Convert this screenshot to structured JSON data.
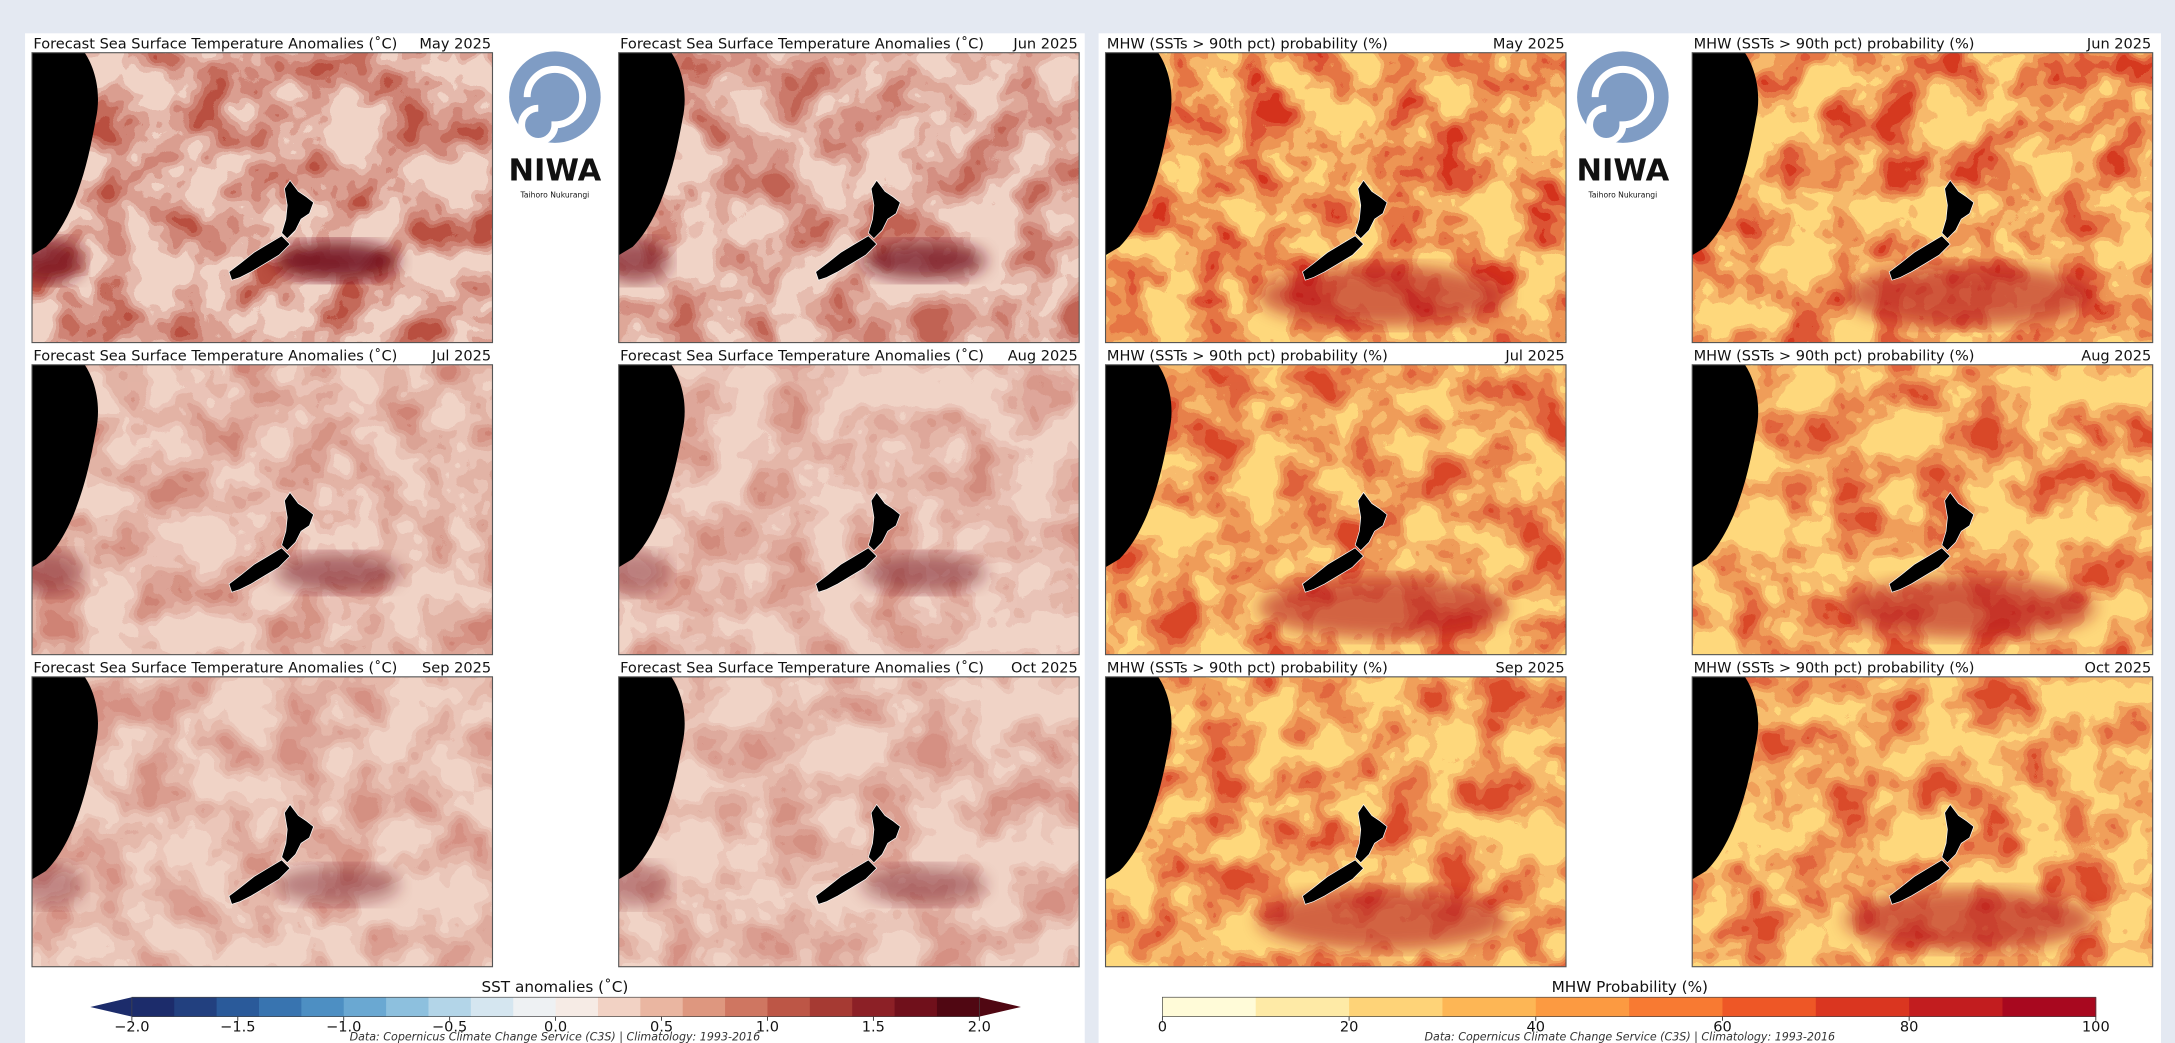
{
  "logo": {
    "name": "NIWA",
    "tagline": "Taihoro Nukurangi"
  },
  "sst_panel": {
    "maps": [
      {
        "title": "Forecast Sea Surface Temperature Anomalies (˚C)",
        "month": "May 2025"
      },
      {
        "title": "Forecast Sea Surface Temperature Anomalies (˚C)",
        "month": "Jun 2025"
      },
      {
        "title": "Forecast Sea Surface Temperature Anomalies (˚C)",
        "month": "Jul 2025"
      },
      {
        "title": "Forecast Sea Surface Temperature Anomalies (˚C)",
        "month": "Aug 2025"
      },
      {
        "title": "Forecast Sea Surface Temperature Anomalies (˚C)",
        "month": "Sep 2025"
      },
      {
        "title": "Forecast Sea Surface Temperature Anomalies (˚C)",
        "month": "Oct 2025"
      }
    ],
    "colorbar": {
      "label": "SST anomalies (˚C)",
      "lim": [
        -2,
        2
      ],
      "ticks": [
        {
          "value": -2,
          "label": "−2.0"
        },
        {
          "value": -1.5,
          "label": "−1.5"
        },
        {
          "value": -1,
          "label": "−1.0"
        },
        {
          "value": -0.5,
          "label": "−0.5"
        },
        {
          "value": 0,
          "label": "0.0"
        },
        {
          "value": 0.5,
          "label": "0.5"
        },
        {
          "value": 1,
          "label": "1.0"
        },
        {
          "value": 1.5,
          "label": "1.5"
        },
        {
          "value": 2,
          "label": "2.0"
        }
      ],
      "colors": [
        "#1c2c6b",
        "#22407f",
        "#2a5a9a",
        "#3874b0",
        "#4d8fc3",
        "#6aa8d2",
        "#8dc0de",
        "#b3d5e8",
        "#d5e6f0",
        "#eef1f3",
        "#f6ebe5",
        "#f2d2c4",
        "#eab6a1",
        "#de977f",
        "#cf7661",
        "#bd5646",
        "#a63a33",
        "#8c2026",
        "#70101b",
        "#500712"
      ]
    },
    "source": "Data: Copernicus Climate Change Service (C3S) | Climatology: 1993-2016"
  },
  "mhw_panel": {
    "maps": [
      {
        "title": "MHW (SSTs > 90th pct) probability (%)",
        "month": "May 2025"
      },
      {
        "title": "MHW (SSTs > 90th pct) probability (%)",
        "month": "Jun 2025"
      },
      {
        "title": "MHW (SSTs > 90th pct) probability (%)",
        "month": "Jul 2025"
      },
      {
        "title": "MHW (SSTs > 90th pct) probability (%)",
        "month": "Aug 2025"
      },
      {
        "title": "MHW (SSTs > 90th pct) probability (%)",
        "month": "Sep 2025"
      },
      {
        "title": "MHW (SSTs > 90th pct) probability (%)",
        "month": "Oct 2025"
      }
    ],
    "colorbar": {
      "label": "MHW Probability (%)",
      "lim": [
        0,
        100
      ],
      "ticks": [
        0,
        20,
        40,
        60,
        80,
        100
      ],
      "colors": [
        "#fffbd8",
        "#feeaa6",
        "#fed378",
        "#fdb655",
        "#fc9a41",
        "#f87a32",
        "#ee5726",
        "#da3620",
        "#c21d1f",
        "#a8081f"
      ]
    },
    "source": "Data: Copernicus Climate Change Service (C3S) | Climatology: 1993-2016"
  }
}
